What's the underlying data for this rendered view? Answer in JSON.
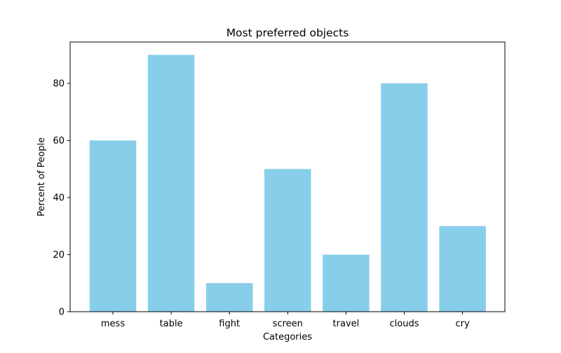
{
  "chart_data": {
    "type": "bar",
    "title": "Most preferred objects",
    "xlabel": "Categories",
    "ylabel": "Percent of People",
    "categories": [
      "mess",
      "table",
      "fight",
      "screen",
      "travel",
      "clouds",
      "cry"
    ],
    "values": [
      60,
      90,
      10,
      50,
      20,
      80,
      30
    ],
    "ylim": [
      0,
      94.5
    ],
    "yticks": [
      0,
      20,
      40,
      60,
      80
    ],
    "bar_color": "#87ceeb",
    "grid": false,
    "legend": "none"
  }
}
